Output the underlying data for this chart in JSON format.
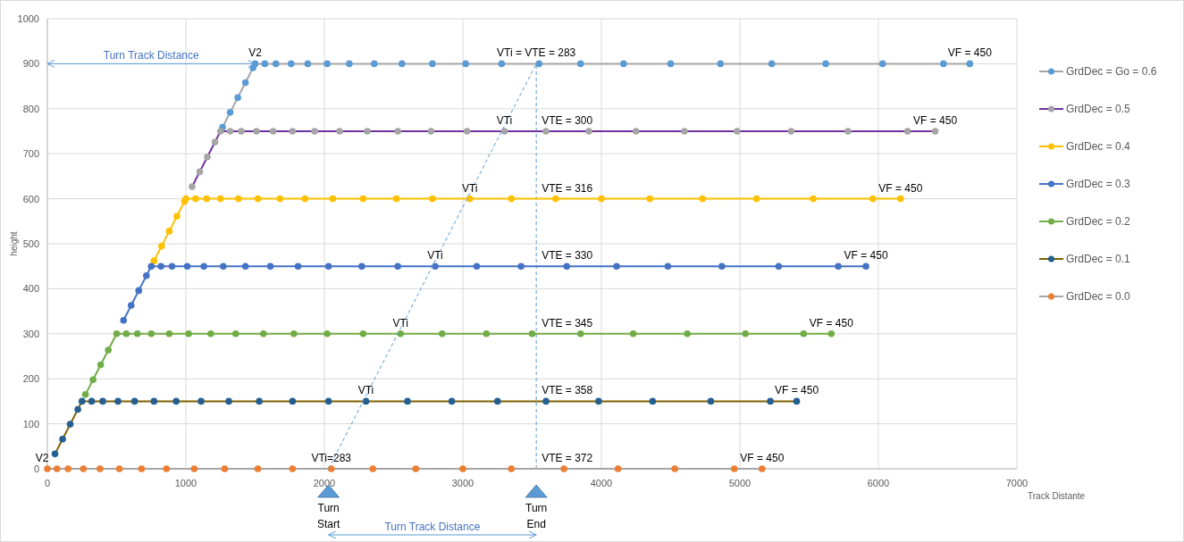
{
  "chart_data": {
    "type": "line",
    "xlabel": "Track Distante",
    "ylabel": "height",
    "xlim": [
      0,
      7000
    ],
    "xticks": [
      0,
      1000,
      2000,
      3000,
      4000,
      5000,
      6000,
      7000
    ],
    "ylim": [
      0,
      1000
    ],
    "yticks": [
      0,
      100,
      200,
      300,
      400,
      500,
      600,
      700,
      800,
      900,
      1000
    ],
    "grid": true,
    "legend": "right",
    "marker": "circle",
    "line_style": "solid",
    "series": [
      {
        "name": "GrdDec = Go = 0.6",
        "color": "#a5a5a5",
        "colors": [
          "#5b9bd5",
          "#5b9bd5",
          "#5b9bd5",
          "#5b9bd5",
          "#5b9bd5",
          "#5b9bd5",
          "#5b9bd5",
          "#5b9bd5",
          "#5b9bd5",
          "#5b9bd5",
          "#5b9bd5",
          "#5b9bd5",
          "#5b9bd5",
          "#5b9bd5",
          "#5b9bd5",
          "#5b9bd5",
          "#5b9bd5",
          "#5b9bd5",
          "#5b9bd5",
          "#5b9bd5",
          "#5b9bd5",
          "#5b9bd5",
          "#5b9bd5",
          "#5b9bd5",
          "#5b9bd5",
          "#5b9bd5",
          "#5b9bd5"
        ],
        "x": [
          1265,
          1320,
          1375,
          1430,
          1485,
          1500,
          1570,
          1650,
          1760,
          1880,
          2020,
          2180,
          2360,
          2560,
          2780,
          3020,
          3280,
          3550,
          3850,
          4160,
          4500,
          4860,
          5230,
          5620,
          6030,
          6470,
          6660
        ],
        "values": [
          759,
          792,
          825,
          858,
          891,
          900,
          900,
          900,
          900,
          900,
          900,
          900,
          900,
          900,
          900,
          900,
          900,
          900,
          900,
          900,
          900,
          900,
          900,
          900,
          900,
          900,
          900
        ]
      },
      {
        "name": "GrdDec = 0.5",
        "color": "#7030a0",
        "colors": [
          "#a5a5a5",
          "#a5a5a5",
          "#a5a5a5",
          "#a5a5a5",
          "#a5a5a5",
          "#a5a5a5",
          "#a5a5a5",
          "#a5a5a5",
          "#a5a5a5",
          "#a5a5a5",
          "#a5a5a5",
          "#a5a5a5",
          "#a5a5a5",
          "#a5a5a5",
          "#a5a5a5",
          "#a5a5a5",
          "#a5a5a5",
          "#a5a5a5",
          "#a5a5a5",
          "#a5a5a5",
          "#a5a5a5",
          "#a5a5a5",
          "#a5a5a5",
          "#a5a5a5",
          "#a5a5a5",
          "#a5a5a5"
        ],
        "x": [
          1045,
          1100,
          1155,
          1210,
          1250,
          1320,
          1400,
          1510,
          1630,
          1770,
          1930,
          2110,
          2310,
          2530,
          2770,
          3030,
          3300,
          3600,
          3910,
          4250,
          4600,
          4980,
          5370,
          5780,
          6210,
          6410
        ],
        "values": [
          627,
          660,
          693,
          726,
          750,
          750,
          750,
          750,
          750,
          750,
          750,
          750,
          750,
          750,
          750,
          750,
          750,
          750,
          750,
          750,
          750,
          750,
          750,
          750,
          750,
          750
        ]
      },
      {
        "name": "GrdDec = 0.4",
        "color": "#ffc000",
        "x": [
          770,
          825,
          880,
          935,
          990,
          1000,
          1070,
          1150,
          1250,
          1380,
          1520,
          1680,
          1860,
          2060,
          2280,
          2520,
          2780,
          3050,
          3350,
          3670,
          4000,
          4350,
          4730,
          5120,
          5530,
          5960,
          6160
        ],
        "values": [
          462,
          495,
          528,
          561,
          594,
          600,
          600,
          600,
          600,
          600,
          600,
          600,
          600,
          600,
          600,
          600,
          600,
          600,
          600,
          600,
          600,
          600,
          600,
          600,
          600,
          600,
          600
        ]
      },
      {
        "name": "GrdDec = 0.3",
        "color": "#4472c4",
        "x": [
          550,
          605,
          660,
          715,
          750,
          820,
          900,
          1010,
          1130,
          1270,
          1430,
          1610,
          1810,
          2030,
          2270,
          2530,
          2800,
          3100,
          3420,
          3750,
          4110,
          4480,
          4870,
          5280,
          5710,
          5910
        ],
        "values": [
          330,
          363,
          396,
          429,
          450,
          450,
          450,
          450,
          450,
          450,
          450,
          450,
          450,
          450,
          450,
          450,
          450,
          450,
          450,
          450,
          450,
          450,
          450,
          450,
          450,
          450
        ]
      },
      {
        "name": "GrdDec = 0.2",
        "color": "#70ad47",
        "x": [
          275,
          330,
          385,
          440,
          500,
          570,
          650,
          750,
          880,
          1020,
          1180,
          1360,
          1560,
          1780,
          2020,
          2280,
          2550,
          2850,
          3170,
          3500,
          3850,
          4230,
          4620,
          5040,
          5460,
          5660
        ],
        "values": [
          165,
          198,
          231,
          264,
          300,
          300,
          300,
          300,
          300,
          300,
          300,
          300,
          300,
          300,
          300,
          300,
          300,
          300,
          300,
          300,
          300,
          300,
          300,
          300,
          300,
          300
        ]
      },
      {
        "name": "GrdDec = 0.1",
        "color": "#7f6000",
        "colors": [
          "#255e91",
          "#255e91",
          "#255e91",
          "#255e91",
          "#255e91",
          "#255e91",
          "#255e91",
          "#255e91",
          "#255e91",
          "#255e91",
          "#255e91",
          "#255e91",
          "#255e91",
          "#255e91",
          "#255e91",
          "#255e91",
          "#255e91",
          "#255e91",
          "#255e91",
          "#255e91",
          "#255e91",
          "#255e91",
          "#255e91",
          "#255e91",
          "#255e91",
          "#255e91"
        ],
        "x": [
          55,
          110,
          165,
          220,
          250,
          320,
          400,
          510,
          630,
          770,
          930,
          1110,
          1310,
          1530,
          1770,
          2030,
          2300,
          2600,
          2920,
          3250,
          3600,
          3980,
          4370,
          4790,
          5220,
          5410
        ],
        "values": [
          33,
          66,
          99,
          132,
          150,
          150,
          150,
          150,
          150,
          150,
          150,
          150,
          150,
          150,
          150,
          150,
          150,
          150,
          150,
          150,
          150,
          150,
          150,
          150,
          150,
          150
        ]
      },
      {
        "name": "GrdDec = 0.0",
        "color": "#a5a5a5",
        "colors": [
          "#ed7d31",
          "#ed7d31",
          "#ed7d31",
          "#ed7d31",
          "#ed7d31",
          "#ed7d31",
          "#ed7d31",
          "#ed7d31",
          "#ed7d31",
          "#ed7d31",
          "#ed7d31",
          "#ed7d31",
          "#ed7d31",
          "#ed7d31",
          "#ed7d31",
          "#ed7d31",
          "#ed7d31",
          "#ed7d31",
          "#ed7d31",
          "#ed7d31",
          "#ed7d31",
          "#ed7d31"
        ],
        "x": [
          0,
          70,
          150,
          260,
          380,
          520,
          680,
          860,
          1060,
          1280,
          1520,
          1770,
          2050,
          2350,
          2660,
          3000,
          3350,
          3730,
          4120,
          4530,
          4960,
          5160
        ],
        "values": [
          0,
          0,
          0,
          0,
          0,
          0,
          0,
          0,
          0,
          0,
          0,
          0,
          0,
          0,
          0,
          0,
          0,
          0,
          0,
          0,
          0,
          0
        ]
      },
      {
        "type": "line",
        "color": "#5b9bd5",
        "line_style": "dashed",
        "marker": "none",
        "x": [
          2030,
          3530
        ],
        "values": [
          0,
          900
        ]
      }
    ],
    "ref_lines": [
      {
        "axis": "x",
        "value": 3530,
        "color": "#5b9bd5",
        "line_style": "dashed"
      }
    ],
    "annotations": [
      {
        "text": "V2",
        "x": 0,
        "y": 0
      },
      {
        "text": "V2",
        "x": 1500,
        "y": 900
      },
      "Turn Track Distance",
      {
        "text": "VTi = VTE = 283",
        "x": 3530,
        "y": 900
      },
      {
        "text": "VTi",
        "x": 3300,
        "y": 750
      },
      {
        "text": "VTE = 300",
        "x": 3530,
        "y": 750
      },
      {
        "text": "VTi",
        "x": 3050,
        "y": 600
      },
      {
        "text": "VTE = 316",
        "x": 3530,
        "y": 600
      },
      {
        "text": "VTi",
        "x": 2800,
        "y": 450
      },
      {
        "text": "VTE = 330",
        "x": 3530,
        "y": 450
      },
      {
        "text": "VTi",
        "x": 2550,
        "y": 300
      },
      {
        "text": "VTE = 345",
        "x": 3530,
        "y": 300
      },
      {
        "text": "VTi",
        "x": 2300,
        "y": 150
      },
      {
        "text": "VTE = 358",
        "x": 3530,
        "y": 150
      },
      {
        "text": "VTi=283",
        "x": 2050,
        "y": 0
      },
      {
        "text": "VTE = 372",
        "x": 3530,
        "y": 0
      },
      {
        "text": "VF = 450",
        "x": 6660,
        "y": 900
      },
      {
        "text": "VF = 450",
        "x": 6410,
        "y": 750
      },
      {
        "text": "VF = 450",
        "x": 6160,
        "y": 600
      },
      {
        "text": "VF = 450",
        "x": 5910,
        "y": 450
      },
      {
        "text": "VF = 450",
        "x": 5660,
        "y": 300
      },
      {
        "text": "VF = 450",
        "x": 5410,
        "y": 150
      },
      {
        "text": "VF = 450",
        "x": 5160,
        "y": 0
      },
      "Turn Start",
      "Turn End",
      "Turn Track Distance"
    ]
  }
}
